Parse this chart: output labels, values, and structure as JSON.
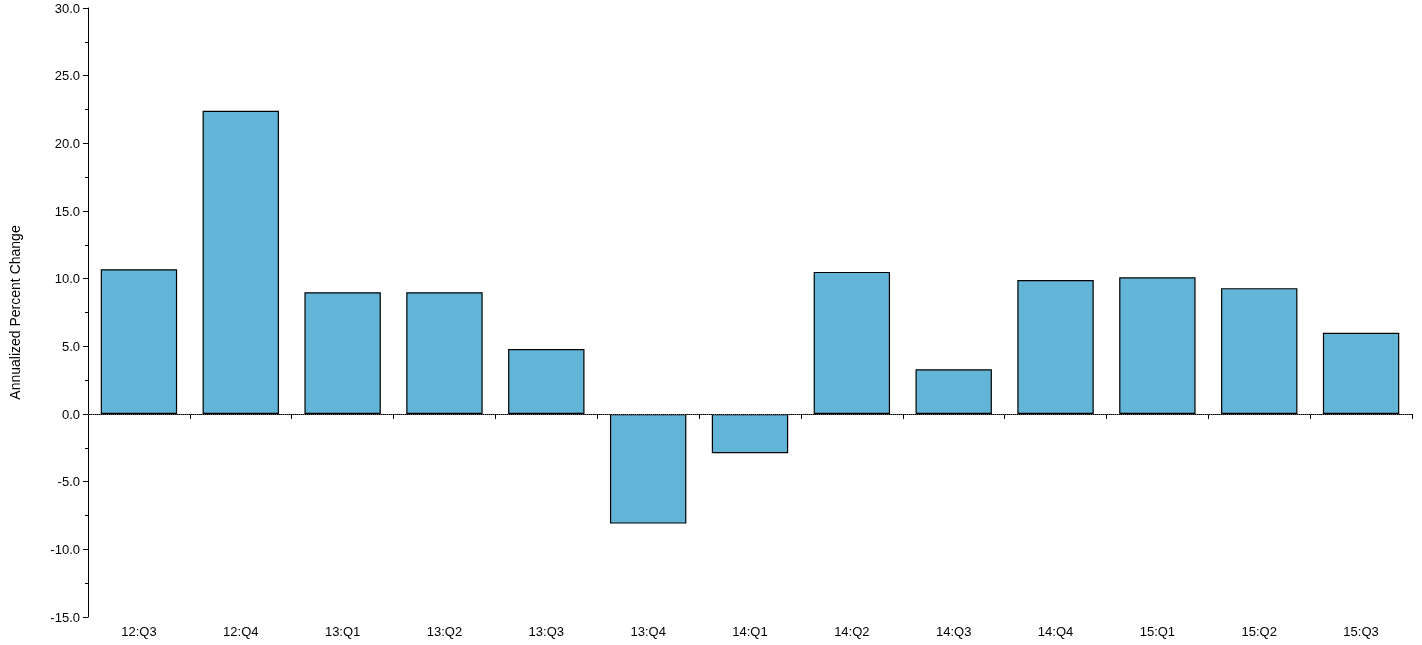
{
  "chart_data": {
    "type": "bar",
    "ylabel": "Annualized Percent Change",
    "categories": [
      "12:Q3",
      "12:Q4",
      "13:Q1",
      "13:Q2",
      "13:Q3",
      "13:Q4",
      "14:Q1",
      "14:Q2",
      "14:Q3",
      "14:Q4",
      "15:Q1",
      "15:Q2",
      "15:Q3"
    ],
    "values": [
      10.7,
      22.4,
      9.0,
      9.0,
      4.8,
      -8.1,
      -2.9,
      10.5,
      3.3,
      9.9,
      10.1,
      9.3,
      6.0
    ],
    "color": "#62b5d6",
    "ylim": [
      -15,
      30
    ],
    "yticks": [
      {
        "value": -15,
        "label": "-15.0"
      },
      {
        "value": -10,
        "label": "-10.0"
      },
      {
        "value": -5,
        "label": "-5.0"
      },
      {
        "value": 0,
        "label": "0.0"
      },
      {
        "value": 5,
        "label": "5.0"
      },
      {
        "value": 10,
        "label": "10.0"
      },
      {
        "value": 15,
        "label": "15.0"
      },
      {
        "value": 20,
        "label": "20.0"
      },
      {
        "value": 25,
        "label": "25.0"
      },
      {
        "value": 30,
        "label": "30.0"
      }
    ],
    "ref_lines": [
      {
        "axis": "y",
        "value": 0,
        "color": "#555555",
        "line_style": "dotted"
      }
    ],
    "grid": false
  }
}
